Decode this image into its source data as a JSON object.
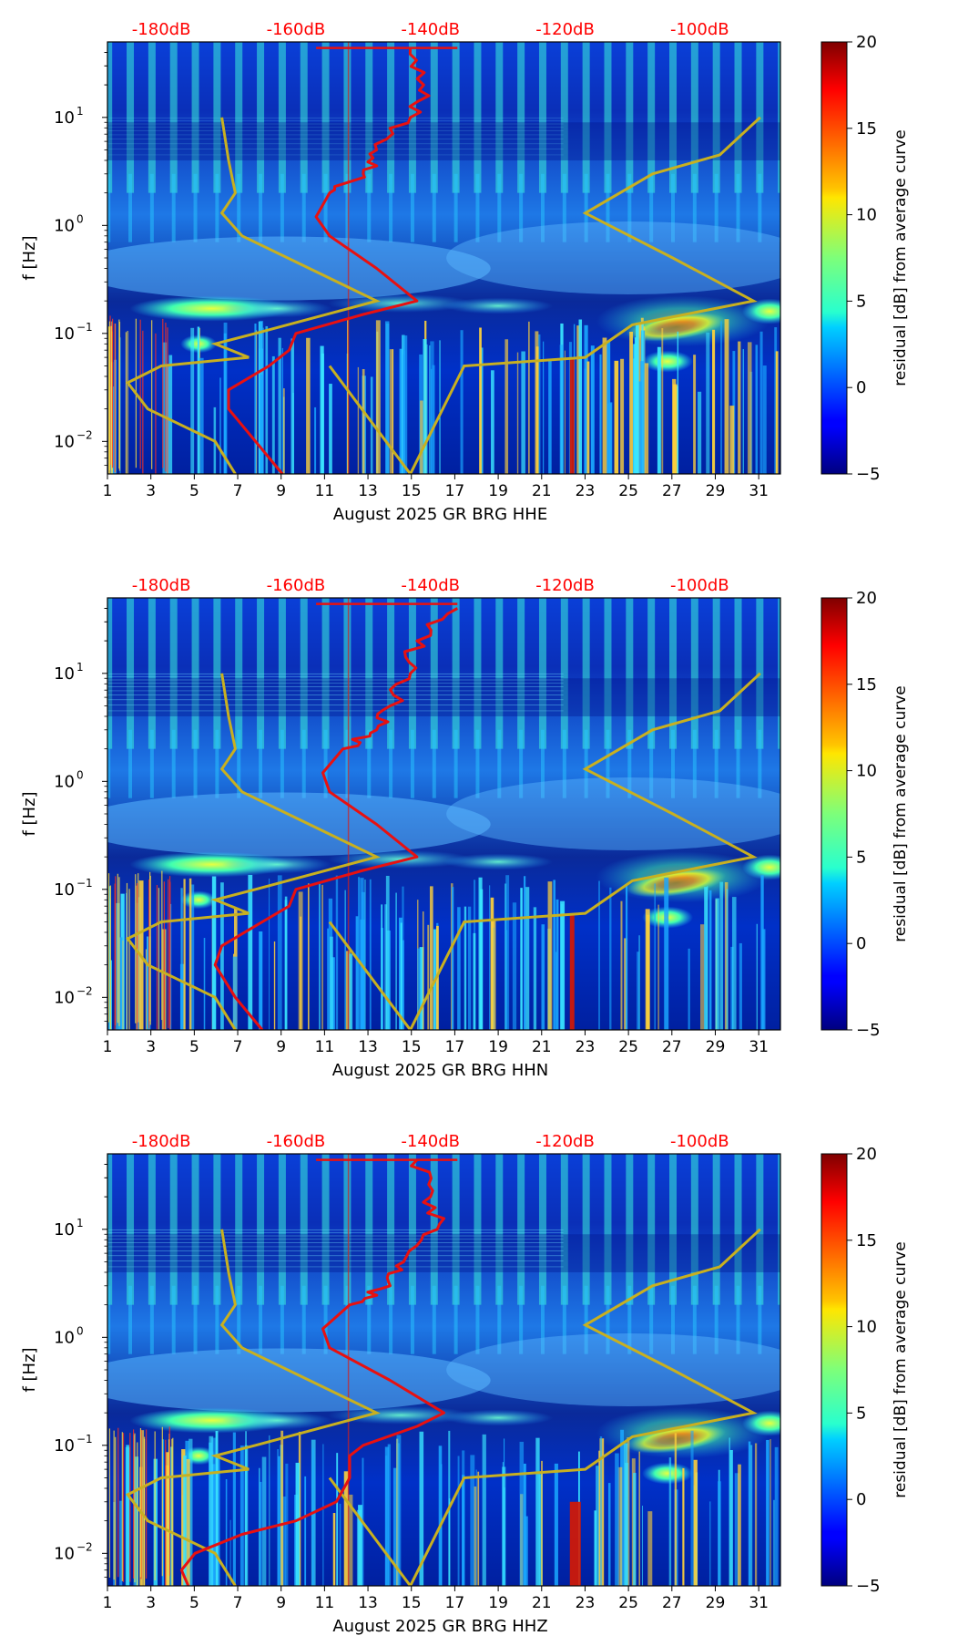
{
  "colors": {
    "db_axis_text": "#ff0000",
    "mean_curve": "#e81010",
    "noise_model": "#c8b020",
    "axis": "#000000"
  },
  "chart_data": [
    {
      "type": "heatmap",
      "channel": "HHE",
      "xlabel": "August 2025 GR BRG  HHE",
      "ylabel": "f [Hz]",
      "x_ticks": [
        "1",
        "3",
        "5",
        "7",
        "9",
        "11",
        "13",
        "15",
        "17",
        "19",
        "21",
        "23",
        "25",
        "27",
        "29",
        "31"
      ],
      "x_range": [
        1,
        32
      ],
      "y_scale": "log",
      "y_range": [
        0.005,
        50
      ],
      "y_ticks": [
        "10^-2",
        "10^-1",
        "10^0",
        "10^1"
      ],
      "db_axis_ticks": [
        "-180dB",
        "-160dB",
        "-140dB",
        "-120dB",
        "-100dB"
      ],
      "db_axis_range": [
        -188,
        -88
      ],
      "colorbar": {
        "label": "residual [dB] from average curve",
        "ticks": [
          "−5",
          "0",
          "5",
          "10",
          "15",
          "20"
        ],
        "range": [
          -5,
          20
        ]
      },
      "mean_curve_db": [
        [
          -162,
          0.005
        ],
        [
          -166,
          0.01
        ],
        [
          -170,
          0.02
        ],
        [
          -170,
          0.03
        ],
        [
          -164,
          0.05
        ],
        [
          -161,
          0.07
        ],
        [
          -160,
          0.1
        ],
        [
          -150,
          0.15
        ],
        [
          -142,
          0.2
        ],
        [
          -148,
          0.4
        ],
        [
          -155,
          0.8
        ],
        [
          -157,
          1.2
        ],
        [
          -155,
          2
        ],
        [
          -150,
          3
        ],
        [
          -148,
          5
        ],
        [
          -143,
          10
        ],
        [
          -141,
          20
        ],
        [
          -143,
          44
        ]
      ]
    },
    {
      "type": "heatmap",
      "channel": "HHN",
      "xlabel": "August 2025 GR BRG  HHN",
      "ylabel": "f [Hz]",
      "x_ticks": [
        "1",
        "3",
        "5",
        "7",
        "9",
        "11",
        "13",
        "15",
        "17",
        "19",
        "21",
        "23",
        "25",
        "27",
        "29",
        "31"
      ],
      "x_range": [
        1,
        32
      ],
      "y_scale": "log",
      "y_range": [
        0.005,
        50
      ],
      "y_ticks": [
        "10^-2",
        "10^-1",
        "10^0",
        "10^1"
      ],
      "db_axis_ticks": [
        "-180dB",
        "-160dB",
        "-140dB",
        "-120dB",
        "-100dB"
      ],
      "db_axis_range": [
        -188,
        -88
      ],
      "colorbar": {
        "label": "residual [dB] from average curve",
        "ticks": [
          "−5",
          "0",
          "5",
          "10",
          "15",
          "20"
        ],
        "range": [
          -5,
          20
        ]
      },
      "mean_curve_db": [
        [
          -165,
          0.005
        ],
        [
          -169,
          0.01
        ],
        [
          -172,
          0.02
        ],
        [
          -171,
          0.03
        ],
        [
          -165,
          0.05
        ],
        [
          -161,
          0.07
        ],
        [
          -160,
          0.1
        ],
        [
          -150,
          0.15
        ],
        [
          -142,
          0.2
        ],
        [
          -148,
          0.4
        ],
        [
          -155,
          0.8
        ],
        [
          -156,
          1.2
        ],
        [
          -153,
          2
        ],
        [
          -148,
          3
        ],
        [
          -146,
          5
        ],
        [
          -143,
          10
        ],
        [
          -142,
          20
        ],
        [
          -136,
          40
        ]
      ]
    },
    {
      "type": "heatmap",
      "channel": "HHZ",
      "xlabel": "August 2025 GR BRG  HHZ",
      "ylabel": "f [Hz]",
      "x_ticks": [
        "1",
        "3",
        "5",
        "7",
        "9",
        "11",
        "13",
        "15",
        "17",
        "19",
        "21",
        "23",
        "25",
        "27",
        "29",
        "31"
      ],
      "x_range": [
        1,
        32
      ],
      "y_scale": "log",
      "y_range": [
        0.005,
        50
      ],
      "y_ticks": [
        "10^-2",
        "10^-1",
        "10^0",
        "10^1"
      ],
      "db_axis_ticks": [
        "-180dB",
        "-160dB",
        "-140dB",
        "-120dB",
        "-100dB"
      ],
      "db_axis_range": [
        -188,
        -88
      ],
      "colorbar": {
        "label": "residual [dB] from average curve",
        "ticks": [
          "−5",
          "0",
          "5",
          "10",
          "15",
          "20"
        ],
        "range": [
          -5,
          20
        ]
      },
      "mean_curve_db": [
        [
          -176,
          0.005
        ],
        [
          -177,
          0.007
        ],
        [
          -175,
          0.01
        ],
        [
          -168,
          0.015
        ],
        [
          -160,
          0.02
        ],
        [
          -154,
          0.03
        ],
        [
          -152,
          0.05
        ],
        [
          -152,
          0.08
        ],
        [
          -150,
          0.1
        ],
        [
          -142,
          0.15
        ],
        [
          -138,
          0.2
        ],
        [
          -146,
          0.4
        ],
        [
          -155,
          0.8
        ],
        [
          -156,
          1.2
        ],
        [
          -152,
          2
        ],
        [
          -146,
          3
        ],
        [
          -144,
          5
        ],
        [
          -139,
          10
        ],
        [
          -140,
          20
        ],
        [
          -142,
          44
        ]
      ]
    }
  ]
}
